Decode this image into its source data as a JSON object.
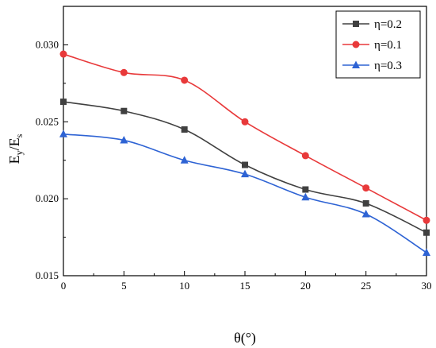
{
  "chart_data": {
    "type": "line",
    "xlabel": "θ(°)",
    "ylabel_main": "E",
    "ylabel_sub1": "y",
    "ylabel_mid": "/E",
    "ylabel_sub2": "s",
    "xlim": [
      0,
      30
    ],
    "ylim": [
      0.015,
      0.0325
    ],
    "x_ticks": [
      0,
      5,
      10,
      15,
      20,
      25,
      30
    ],
    "x_tick_labels": [
      "0",
      "5",
      "10",
      "15",
      "20",
      "25",
      "30"
    ],
    "y_ticks": [
      0.015,
      0.02,
      0.025,
      0.03
    ],
    "y_tick_labels": [
      "0.015",
      "0.020",
      "0.025",
      "0.030"
    ],
    "legend_position": "top-right",
    "grid": false,
    "x": [
      0,
      5,
      10,
      15,
      20,
      25,
      30
    ],
    "series": [
      {
        "name": "η=0.2",
        "color": "#404040",
        "marker": "square",
        "values": [
          0.0263,
          0.0257,
          0.0245,
          0.0222,
          0.0206,
          0.0197,
          0.0178
        ]
      },
      {
        "name": "η=0.1",
        "color": "#e8393a",
        "marker": "circle",
        "values": [
          0.0294,
          0.0282,
          0.0277,
          0.025,
          0.0228,
          0.0207,
          0.0186
        ]
      },
      {
        "name": "η=0.3",
        "color": "#2e63d4",
        "marker": "triangle",
        "values": [
          0.0242,
          0.0238,
          0.0225,
          0.0216,
          0.0201,
          0.019,
          0.0165
        ]
      }
    ]
  }
}
